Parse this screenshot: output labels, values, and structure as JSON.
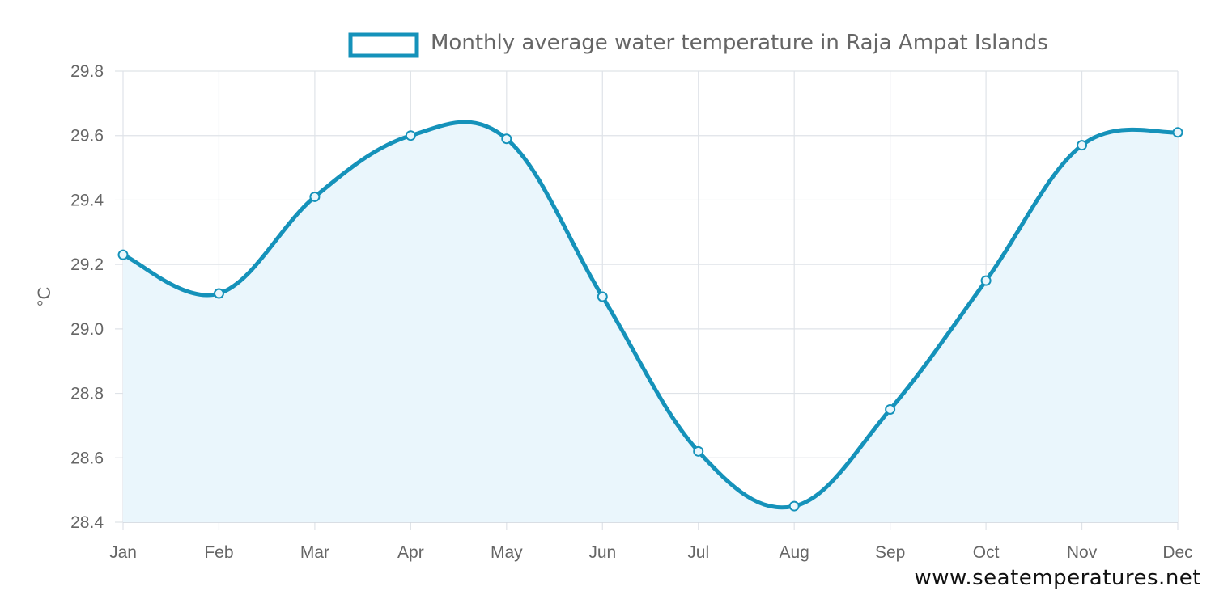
{
  "chart_data": {
    "type": "line",
    "title": "",
    "legend": {
      "label": "Monthly average water temperature in Raja Ampat Islands",
      "placement": "top-center"
    },
    "categories": [
      "Jan",
      "Feb",
      "Mar",
      "Apr",
      "May",
      "Jun",
      "Jul",
      "Aug",
      "Sep",
      "Oct",
      "Nov",
      "Dec"
    ],
    "series": [
      {
        "name": "Monthly average water temperature in Raja Ampat Islands",
        "values": [
          29.23,
          29.11,
          29.41,
          29.6,
          29.59,
          29.1,
          28.62,
          28.45,
          28.75,
          29.15,
          29.57,
          29.61
        ]
      }
    ],
    "xlabel": "",
    "ylabel": "°C",
    "ylim": [
      28.4,
      29.8
    ],
    "yticks": [
      "29.8",
      "29.6",
      "29.4",
      "29.2",
      "29.0",
      "28.8",
      "28.6",
      "28.4"
    ],
    "grid": true,
    "colors": {
      "line": "#1592ba",
      "fill": "#eaf6fc",
      "grid": "#dfe3e8",
      "tick_text": "#666666"
    }
  },
  "watermark": "www.seatemperatures.net"
}
